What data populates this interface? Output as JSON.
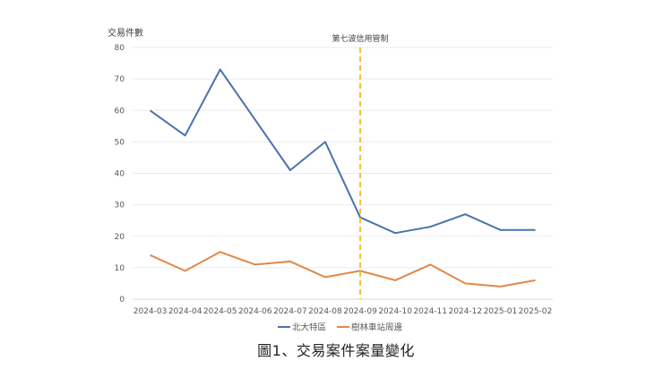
{
  "chart_data": {
    "type": "line",
    "title": "",
    "caption": "圖1、交易案件案量變化",
    "ylabel": "交易件數",
    "xlabel": "",
    "ylim": [
      0,
      80
    ],
    "yticks": [
      0,
      10,
      20,
      30,
      40,
      50,
      60,
      70,
      80
    ],
    "grid": true,
    "legend_position": "bottom",
    "categories": [
      "2024-03",
      "2024-04",
      "2024-05",
      "2024-06",
      "2024-07",
      "2024-08",
      "2024-09",
      "2024-10",
      "2024-11",
      "2024-12",
      "2025-01",
      "2025-02"
    ],
    "series": [
      {
        "name": "北大特區",
        "color": "#4a72b0",
        "values": [
          60,
          52,
          73,
          57,
          41,
          50,
          26,
          21,
          23,
          27,
          22,
          22
        ]
      },
      {
        "name": "樹林車站周邊",
        "color": "#e0894a",
        "values": [
          14,
          9,
          15,
          11,
          12,
          7,
          9,
          6,
          11,
          5,
          4,
          6
        ]
      }
    ],
    "annotations": [
      {
        "type": "vertical-dashed-line",
        "at": "2024-09",
        "color": "#f2c230",
        "label": "第七波信用管制"
      }
    ]
  }
}
